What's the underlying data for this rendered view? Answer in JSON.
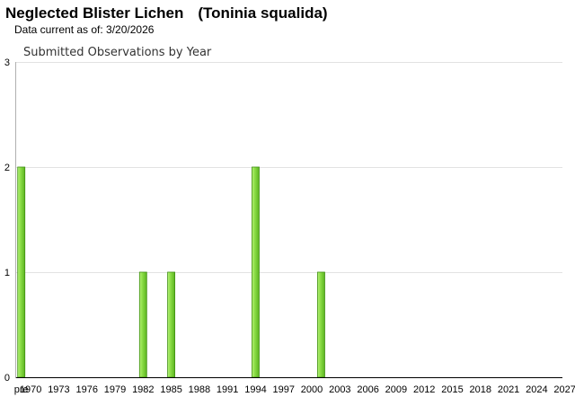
{
  "header": {
    "common_name": "Neglected Blister Lichen",
    "scientific_name": "(Toninia squalida)",
    "data_current_label": "Data current as of: 3/20/2026"
  },
  "chart_data": {
    "type": "bar",
    "title": "Submitted Observations by Year",
    "xlabel": "",
    "ylabel": "",
    "ylim": [
      0,
      3
    ],
    "yticks": [
      0,
      1,
      2,
      3
    ],
    "grid": true,
    "legend": "none",
    "bar_color": "#7fd63a",
    "bar_edge_color": "#3f8f12",
    "categories": [
      "pre",
      "1970",
      "1971",
      "1972",
      "1973",
      "1974",
      "1975",
      "1976",
      "1977",
      "1978",
      "1979",
      "1980",
      "1981",
      "1982",
      "1983",
      "1984",
      "1985",
      "1986",
      "1987",
      "1988",
      "1989",
      "1990",
      "1991",
      "1992",
      "1993",
      "1994",
      "1995",
      "1996",
      "1997",
      "1998",
      "1999",
      "2000",
      "2001",
      "2002",
      "2003",
      "2004",
      "2005",
      "2006",
      "2007",
      "2008",
      "2009",
      "2010",
      "2011",
      "2012",
      "2013",
      "2014",
      "2015",
      "2016",
      "2017",
      "2018",
      "2019",
      "2020",
      "2021",
      "2022",
      "2023",
      "2024",
      "2025",
      "2026",
      "2027"
    ],
    "tick_labels": [
      "pre",
      "1970",
      "1973",
      "1976",
      "1979",
      "1982",
      "1985",
      "1988",
      "1991",
      "1994",
      "1997",
      "2000",
      "2003",
      "2006",
      "2009",
      "2012",
      "2015",
      "2018",
      "2021",
      "2024",
      "2027"
    ],
    "values": [
      2,
      0,
      0,
      0,
      0,
      0,
      0,
      0,
      0,
      0,
      0,
      0,
      0,
      1,
      0,
      0,
      1,
      0,
      0,
      0,
      0,
      0,
      0,
      0,
      0,
      2,
      0,
      0,
      0,
      0,
      0,
      0,
      1,
      0,
      0,
      0,
      0,
      0,
      0,
      0,
      0,
      0,
      0,
      0,
      0,
      0,
      0,
      0,
      0,
      0,
      0,
      0,
      0,
      0,
      0,
      0,
      0,
      0,
      0
    ]
  }
}
